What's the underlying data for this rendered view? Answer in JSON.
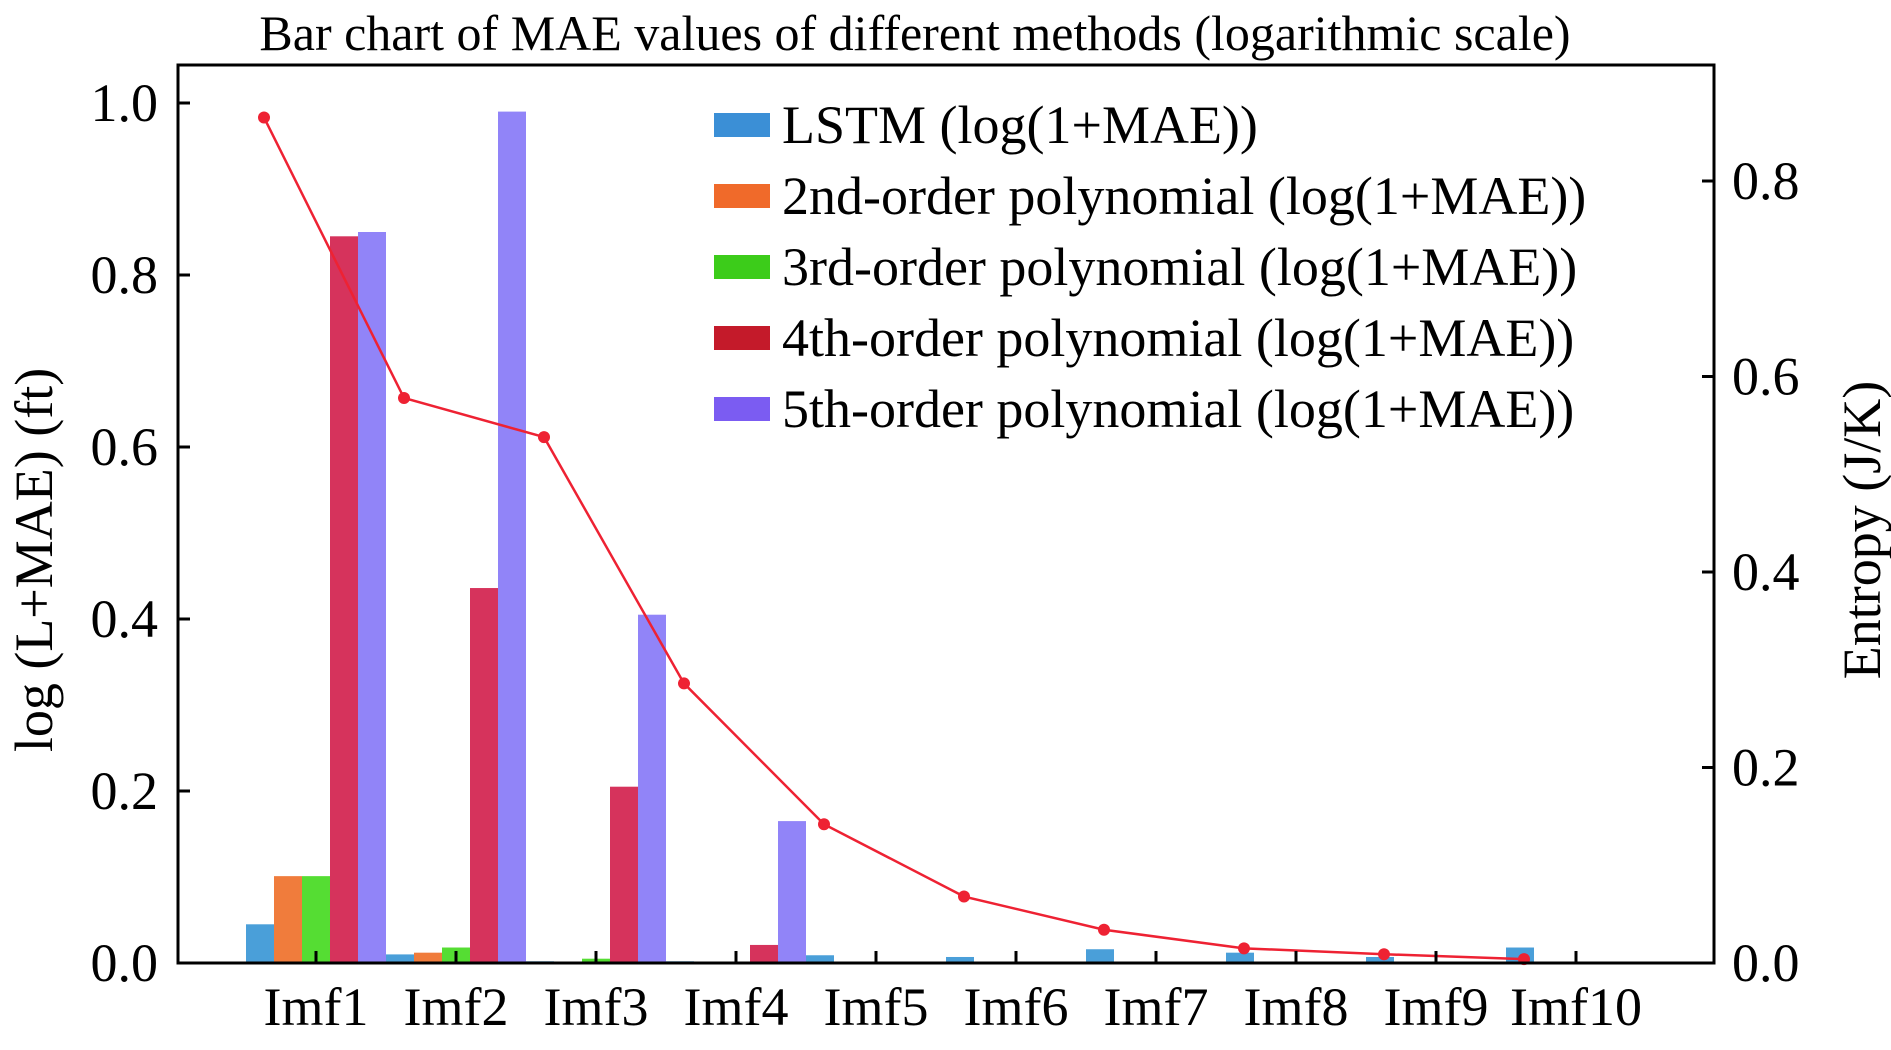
{
  "chart_data": {
    "type": "bar",
    "title": "Bar chart of MAE values of different methods (logarithmic scale)",
    "xlabel": "",
    "ylabel": "log (L+MAE) (ft)",
    "y2label": "Entropy (J/K)",
    "categories": [
      "Imf1",
      "Imf2",
      "Imf3",
      "Imf4",
      "Imf5",
      "Imf6",
      "Imf7",
      "Imf8",
      "Imf9",
      "Imf10"
    ],
    "ylim": [
      0,
      1.0
    ],
    "y2lim": [
      0,
      0.87
    ],
    "yticks": [
      "0.0",
      "0.2",
      "0.4",
      "0.6",
      "0.8",
      "1.0"
    ],
    "y2ticks": [
      "0.0",
      "0.2",
      "0.4",
      "0.6",
      "0.8"
    ],
    "legend_position": "top-right",
    "series": [
      {
        "name": "LSTM (log(1+MAE))",
        "color": "#4a9fd9",
        "values": [
          0.045,
          0.01,
          0.002,
          0.002,
          0.009,
          0.007,
          0.016,
          0.012,
          0.007,
          0.018
        ]
      },
      {
        "name": "2nd-order polynomial (log(1+MAE))",
        "color": "#f07c3c",
        "values": [
          0.101,
          0.012,
          0.0,
          0.0,
          0.0,
          0.0,
          0.0,
          0.0,
          0.0,
          0.0
        ]
      },
      {
        "name": "3rd-order polynomial (log(1+MAE))",
        "color": "#55dd33",
        "values": [
          0.101,
          0.018,
          0.005,
          0.0,
          0.0,
          0.0,
          0.0,
          0.0,
          0.0,
          0.0
        ]
      },
      {
        "name": "4th-order polynomial (log(1+MAE))",
        "color": "#d6335c",
        "values": [
          0.845,
          0.436,
          0.205,
          0.021,
          0.0,
          0.0,
          0.0,
          0.0,
          0.0,
          0.0
        ]
      },
      {
        "name": "5th-order polynomial (log(1+MAE))",
        "color": "#9184f8",
        "values": [
          0.85,
          0.99,
          0.405,
          0.165,
          0.0,
          0.0,
          0.0,
          0.0,
          0.0,
          0.0
        ]
      }
    ],
    "legend_colors": [
      "#3b8fd6",
      "#f06a2a",
      "#3ccc1a",
      "#c41a2a",
      "#7b5cf2"
    ],
    "line_series": {
      "axis": "right",
      "color": "#ee2233",
      "values": [
        0.865,
        0.578,
        0.538,
        0.286,
        0.142,
        0.068,
        0.034,
        0.015,
        0.009,
        0.004
      ]
    }
  }
}
